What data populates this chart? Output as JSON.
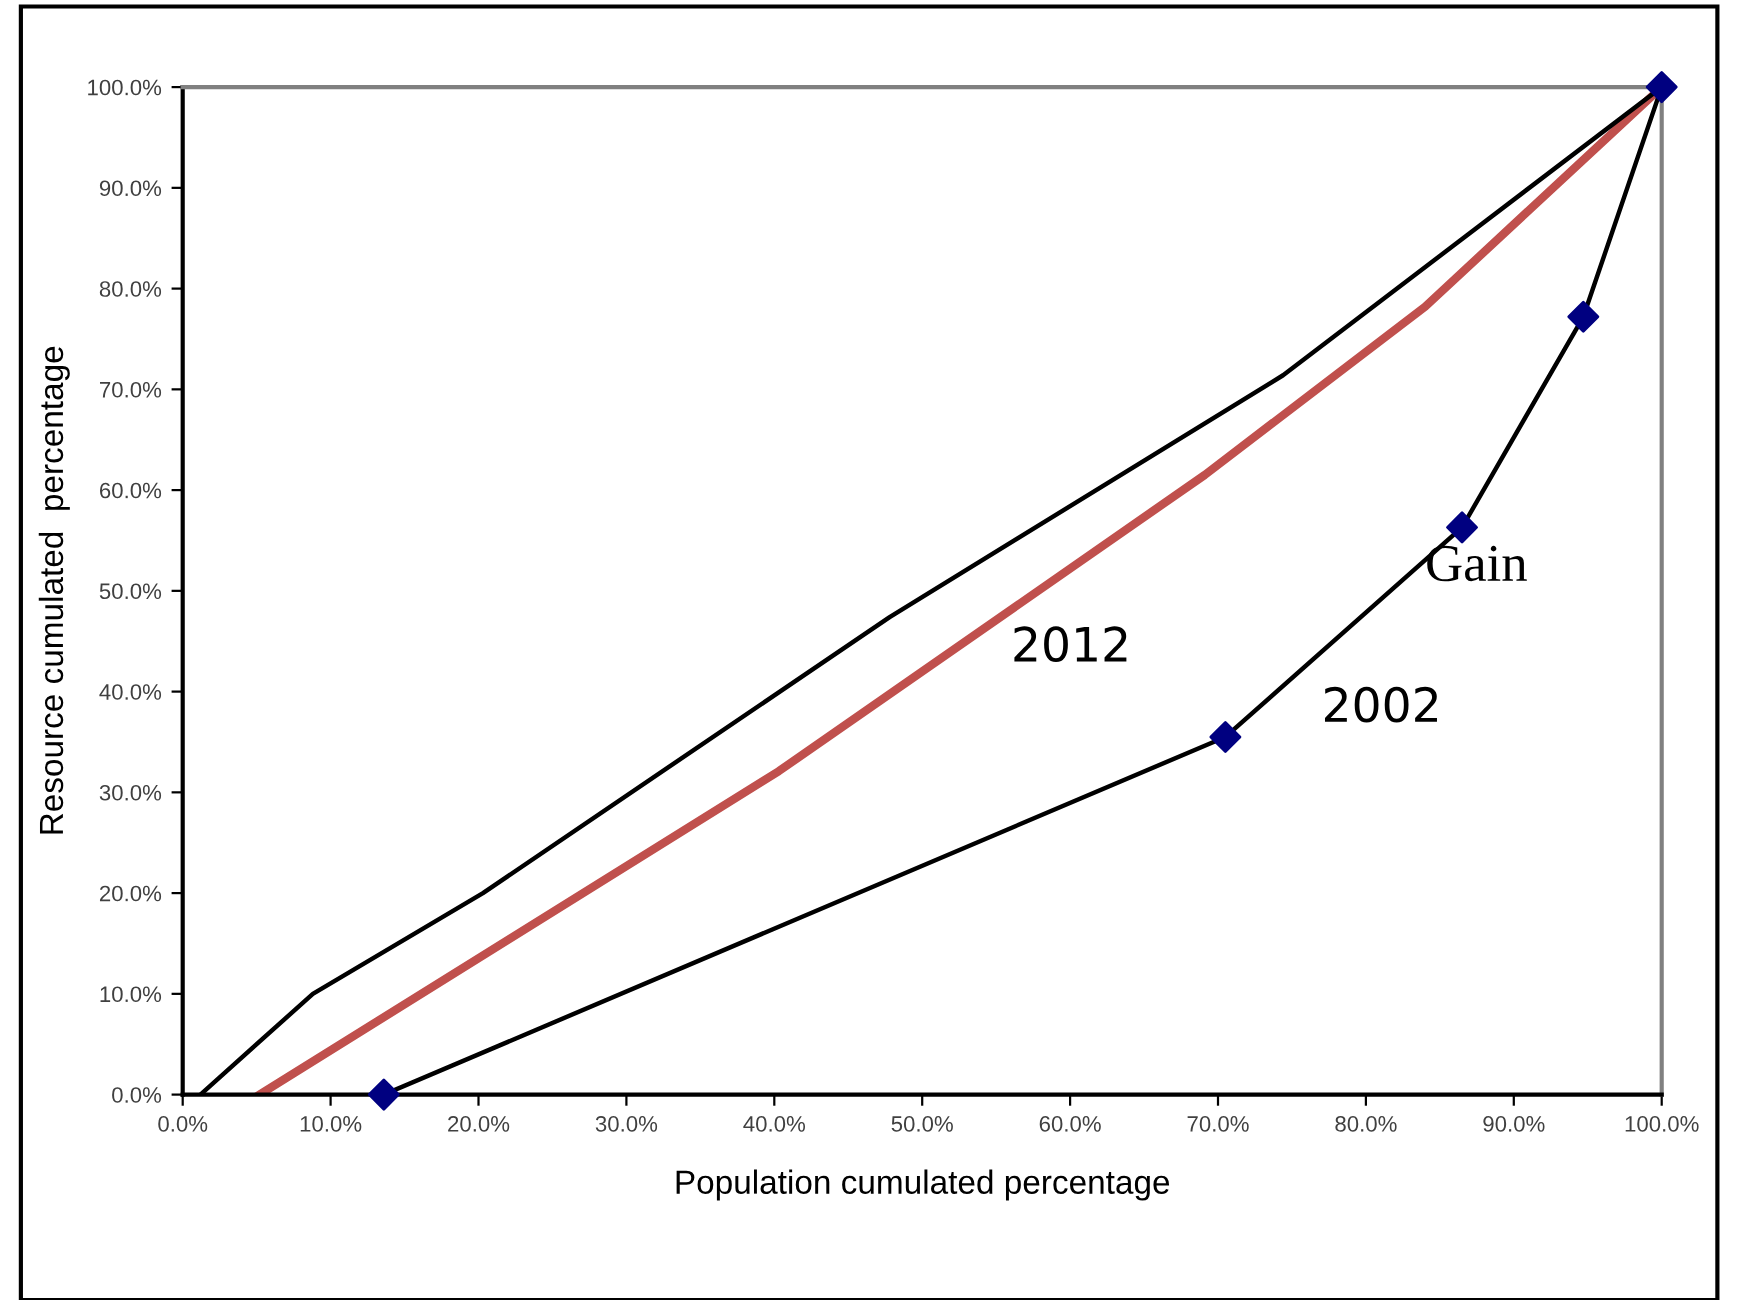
{
  "chart_data": {
    "type": "line",
    "xlabel": "Population cumulated percentage",
    "ylabel": "Resource cumulated  percentage",
    "series": [
      {
        "name": "2012",
        "color": "#c0504d",
        "marker": "none",
        "x": [
          5.2,
          40.3,
          69.1,
          84.0,
          100
        ],
        "values": [
          0,
          32.1,
          61.5,
          78.2,
          100
        ]
      },
      {
        "color": "#000000",
        "marker": "none",
        "x": [
          1.2,
          8.8,
          20.3,
          47.8,
          74.4,
          100
        ],
        "values": [
          0,
          10,
          20,
          47.4,
          71.4,
          100
        ]
      },
      {
        "name": "2002",
        "color": "#000000",
        "marker": "none",
        "x": [
          13.6,
          70.5,
          86.5,
          94.7,
          100
        ],
        "values": [
          0,
          35.5,
          56.3,
          77.2,
          100
        ]
      },
      {
        "type": "scatter",
        "color": "#000080",
        "marker": "diamond",
        "x": [
          13.6,
          70.5,
          86.5,
          94.7,
          100
        ],
        "values": [
          0,
          35.5,
          56.3,
          77.2,
          100
        ]
      }
    ],
    "annotations": [
      "Gain"
    ],
    "xlim": [
      0,
      100
    ],
    "ylim": [
      0,
      100
    ],
    "xticks": [
      {
        "value": 0,
        "label": "0.0%"
      },
      {
        "value": 10,
        "label": "10.0%"
      },
      {
        "value": 20,
        "label": "20.0%"
      },
      {
        "value": 30,
        "label": "30.0%"
      },
      {
        "value": 40,
        "label": "40.0%"
      },
      {
        "value": 50,
        "label": "50.0%"
      },
      {
        "value": 60,
        "label": "60.0%"
      },
      {
        "value": 70,
        "label": "70.0%"
      },
      {
        "value": 80,
        "label": "80.0%"
      },
      {
        "value": 90,
        "label": "90.0%"
      },
      {
        "value": 100,
        "label": "100.0%"
      }
    ],
    "yticks": [
      {
        "value": 0,
        "label": "0.0%"
      },
      {
        "value": 10,
        "label": "10.0%"
      },
      {
        "value": 20,
        "label": "20.0%"
      },
      {
        "value": 30,
        "label": "30.0%"
      },
      {
        "value": 40,
        "label": "40.0%"
      },
      {
        "value": 50,
        "label": "50.0%"
      },
      {
        "value": 60,
        "label": "60.0%"
      },
      {
        "value": 70,
        "label": "70.0%"
      },
      {
        "value": 80,
        "label": "80.0%"
      },
      {
        "value": 90,
        "label": "90.0%"
      },
      {
        "value": 100,
        "label": "100.0%"
      }
    ],
    "grid": false,
    "legend": false
  }
}
